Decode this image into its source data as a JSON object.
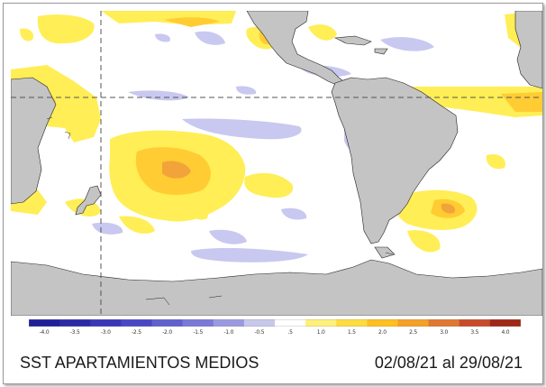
{
  "title": "SST APARTAMIENTOS MEDIOS",
  "date_range": "02/08/21 al 29/08/21",
  "colorbar": {
    "ticks": [
      "-4.0",
      "-3.5",
      "-3.0",
      "-2.5",
      "-2.0",
      "-1.5",
      "-1.0",
      "-0.5",
      ".5",
      "1.0",
      "1.5",
      "2.0",
      "2.5",
      "3.0",
      "3.5",
      "4.0"
    ],
    "colors": [
      "#20209a",
      "#2a2aa8",
      "#3838b8",
      "#4848c6",
      "#6060d0",
      "#7a7ad8",
      "#9a9ae0",
      "#c8c8ec",
      "#ffffff",
      "#fff07a",
      "#ffdc40",
      "#ffc020",
      "#f5a028",
      "#e07830",
      "#c84a2a",
      "#a02818"
    ]
  },
  "legend_colors": {
    "land": "#c4c4c4",
    "ocean": "#ffffff",
    "warm_light": "#ffee55",
    "warm_mid": "#ffcc33",
    "warm_strong": "#f2a33a",
    "cool_light": "#c8c8f0"
  }
}
